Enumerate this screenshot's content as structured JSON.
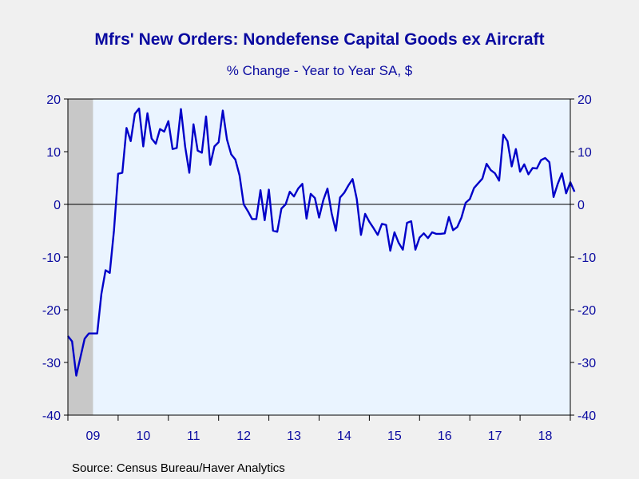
{
  "chart_data": {
    "type": "line",
    "title": "Mfrs' New Orders: Nondefense Capital Goods ex Aircraft",
    "subtitle": "% Change - Year to Year     SA, $",
    "source": "Source:  Census Bureau/Haver Analytics",
    "ylim": [
      -40,
      20
    ],
    "yticks": [
      20,
      10,
      0,
      -10,
      -20,
      -30,
      -40
    ],
    "x_tick_labels": [
      "09",
      "10",
      "11",
      "12",
      "13",
      "14",
      "15",
      "16",
      "17",
      "18"
    ],
    "x_start": "2009-01",
    "x_end": "2018-12",
    "recession": {
      "start": "2009-01",
      "end": "2009-06"
    },
    "colors": {
      "line": "#0000c8",
      "text": "#0a0aa0",
      "plot_bg": "#eaf4ff",
      "recession": "#c8c8c8",
      "page_bg": "#f0f0f0"
    },
    "series": [
      {
        "values": [
          -25,
          -26,
          -32.5,
          -29,
          -25.5,
          -24.5,
          -24.5,
          -24.5,
          -17,
          -12.5,
          -13,
          -5,
          5.8,
          6,
          14.5,
          12,
          17.2,
          18.2,
          11,
          17.3,
          12.5,
          11.5,
          14.3,
          13.8,
          15.8,
          10.5,
          10.7,
          18.1,
          11,
          6,
          15.2,
          10.2,
          9.8,
          16.7,
          7.5,
          11,
          11.8,
          17.8,
          12.3,
          9.5,
          8.5,
          5.5,
          0,
          -1.3,
          -2.8,
          -2.8,
          2.7,
          -3,
          2.8,
          -5,
          -5.2,
          -0.8,
          0,
          2.4,
          1.5,
          3,
          3.9,
          -2.7,
          2,
          1.2,
          -2.5,
          0.8,
          3,
          -1.7,
          -5,
          1.3,
          2.2,
          3.6,
          4.8,
          1,
          -5.8,
          -1.8,
          -3.3,
          -4.5,
          -5.8,
          -3.7,
          -3.9,
          -8.8,
          -5.3,
          -7.3,
          -8.6,
          -3.5,
          -3.2,
          -8.6,
          -6.3,
          -5.5,
          -6.4,
          -5.3,
          -5.6,
          -5.6,
          -5.5,
          -2.4,
          -4.9,
          -4.3,
          -2.5,
          0.3,
          1,
          3.1,
          4,
          4.9,
          7.7,
          6.5,
          5.9,
          4.5,
          13.2,
          12,
          7.2,
          10.5,
          6.2,
          7.6,
          5.7,
          6.9,
          6.8,
          8.4,
          8.8,
          8,
          1.4,
          3.9,
          5.9,
          2.1,
          4.2,
          2.4
        ]
      }
    ]
  }
}
